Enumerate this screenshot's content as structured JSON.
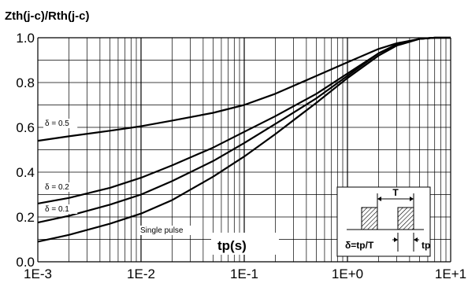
{
  "chart_data": {
    "type": "line",
    "ylabel": "Zth(j-c)/Rth(j-c)",
    "xlabel": "tp(s)",
    "xscale": "log",
    "xlim": [
      0.001,
      10
    ],
    "ylim": [
      0.0,
      1.0
    ],
    "grid": true,
    "x_tick_labels": [
      "1E-3",
      "1E-2",
      "1E-1",
      "1E+0",
      "1E+1"
    ],
    "y_tick_labels": [
      "0.0",
      "0.2",
      "0.4",
      "0.6",
      "0.8",
      "1.0"
    ],
    "series": [
      {
        "name": "δ = 0.5",
        "x": [
          0.001,
          0.002,
          0.005,
          0.01,
          0.02,
          0.05,
          0.1,
          0.2,
          0.5,
          1,
          2,
          3,
          5,
          7,
          10
        ],
        "y": [
          0.54,
          0.56,
          0.585,
          0.605,
          0.63,
          0.665,
          0.7,
          0.75,
          0.83,
          0.89,
          0.95,
          0.975,
          0.995,
          1.0,
          1.0
        ]
      },
      {
        "name": "δ = 0.2",
        "x": [
          0.001,
          0.002,
          0.005,
          0.01,
          0.02,
          0.05,
          0.1,
          0.2,
          0.5,
          1,
          2,
          3,
          5,
          7,
          10
        ],
        "y": [
          0.26,
          0.285,
          0.33,
          0.375,
          0.43,
          0.51,
          0.58,
          0.65,
          0.75,
          0.84,
          0.93,
          0.97,
          0.995,
          1.0,
          1.0
        ]
      },
      {
        "name": "δ = 0.1",
        "x": [
          0.001,
          0.002,
          0.005,
          0.01,
          0.02,
          0.05,
          0.1,
          0.2,
          0.5,
          1,
          2,
          3,
          5,
          7,
          10
        ],
        "y": [
          0.175,
          0.205,
          0.255,
          0.3,
          0.36,
          0.45,
          0.53,
          0.615,
          0.73,
          0.83,
          0.93,
          0.97,
          0.995,
          1.0,
          1.0
        ]
      },
      {
        "name": "Single pulse",
        "x": [
          0.001,
          0.002,
          0.005,
          0.01,
          0.02,
          0.05,
          0.1,
          0.2,
          0.5,
          1,
          2,
          3,
          5,
          7,
          10
        ],
        "y": [
          0.09,
          0.12,
          0.17,
          0.215,
          0.275,
          0.38,
          0.47,
          0.57,
          0.71,
          0.82,
          0.92,
          0.965,
          0.995,
          1.0,
          1.0
        ]
      }
    ],
    "inset": {
      "period_label": "T",
      "pulse_label": "tp",
      "formula": "δ=tp/T"
    }
  }
}
